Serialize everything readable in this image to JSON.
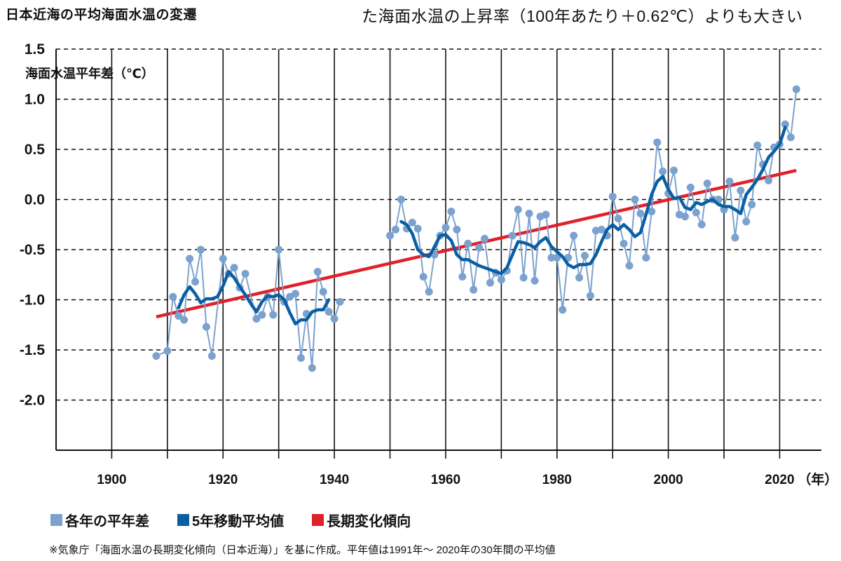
{
  "header": {
    "title": "日本近海の平均海面水温の変遷",
    "note": "た海面水温の上昇率（100年あたり＋0.62℃）よりも大きい"
  },
  "legend": [
    {
      "label": "各年の平年差",
      "color": "#7ba2cf"
    },
    {
      "label": "5年移動平均値",
      "color": "#0a5fa3"
    },
    {
      "label": "長期変化傾向",
      "color": "#e0202a"
    }
  ],
  "source": "※気象庁「海面水温の長期変化傾向（日本近海）」を基に作成。平年値は1991年～ 2020年の30年間の平均値",
  "chart_data": {
    "type": "line",
    "title": "日本近海の平均海面水温の変遷",
    "ylabel": "海面水温平年差（℃）",
    "xlabel": "（年）",
    "xlim": [
      1890,
      2027.5
    ],
    "ylim": [
      -2.5,
      1.5
    ],
    "grid": true,
    "legend_position": "bottom",
    "yticks": [
      1.5,
      1.0,
      0.5,
      0.0,
      -0.5,
      -1.0,
      -1.5,
      -2.0
    ],
    "ytick_labels": [
      "1.5",
      "1.0",
      "0.5",
      "0.0",
      "-0.5",
      "-1.0",
      "-1.5",
      "-2.0"
    ],
    "xticks": [
      1900,
      1920,
      1940,
      1960,
      1980,
      2000,
      2020
    ],
    "xtick_labels": [
      "1900",
      "1920",
      "1940",
      "1960",
      "1980",
      "2000",
      "2020"
    ],
    "series": [
      {
        "name": "各年の平年差",
        "segments": [
          {
            "x": [
              1908,
              1910,
              1911,
              1912,
              1913,
              1914,
              1915,
              1916,
              1917,
              1918,
              1920,
              1921,
              1922,
              1923,
              1924,
              1926,
              1927,
              1928,
              1929,
              1930,
              1931,
              1932,
              1933,
              1934,
              1935,
              1936,
              1937,
              1938,
              1939,
              1940,
              1941
            ],
            "y": [
              -1.56,
              -1.51,
              -0.97,
              -1.16,
              -1.2,
              -0.59,
              -0.82,
              -0.5,
              -1.27,
              -1.56,
              -0.59,
              -0.74,
              -0.68,
              -0.88,
              -0.74,
              -1.19,
              -1.15,
              -0.97,
              -1.15,
              -0.5,
              -1.02,
              -0.97,
              -0.94,
              -1.58,
              -1.14,
              -1.68,
              -0.72,
              -0.92,
              -1.12,
              -1.19,
              -1.02
            ]
          },
          {
            "x": [
              1950,
              1951,
              1952,
              1953,
              1954,
              1955,
              1956,
              1957,
              1958,
              1959,
              1960,
              1961,
              1962,
              1963,
              1964,
              1965,
              1966,
              1967,
              1968,
              1969,
              1970,
              1971,
              1972,
              1973,
              1974,
              1975,
              1976,
              1977,
              1978,
              1979,
              1980,
              1981,
              1982,
              1983,
              1984,
              1985,
              1986,
              1987,
              1988,
              1989,
              1990,
              1991,
              1992,
              1993,
              1994,
              1995,
              1996,
              1997,
              1998,
              1999,
              2000,
              2001,
              2002,
              2003,
              2004,
              2005,
              2006,
              2007,
              2008,
              2009,
              2010,
              2011,
              2012,
              2013,
              2014,
              2015,
              2016,
              2017,
              2018,
              2019,
              2020,
              2021,
              2022,
              2023
            ],
            "y": [
              -0.36,
              -0.3,
              0.0,
              -0.29,
              -0.23,
              -0.29,
              -0.77,
              -0.92,
              -0.55,
              -0.36,
              -0.28,
              -0.12,
              -0.3,
              -0.77,
              -0.44,
              -0.9,
              -0.48,
              -0.39,
              -0.83,
              -0.73,
              -0.8,
              -0.71,
              -0.36,
              -0.1,
              -0.78,
              -0.14,
              -0.81,
              -0.17,
              -0.15,
              -0.58,
              -0.58,
              -1.1,
              -0.58,
              -0.36,
              -0.78,
              -0.56,
              -0.96,
              -0.31,
              -0.3,
              -0.36,
              0.03,
              -0.19,
              -0.44,
              -0.66,
              0.0,
              -0.14,
              -0.58,
              -0.12,
              0.57,
              0.28,
              0.06,
              0.29,
              -0.15,
              -0.17,
              0.12,
              -0.13,
              -0.25,
              0.16,
              0.0,
              0.0,
              -0.1,
              0.18,
              -0.38,
              0.09,
              -0.22,
              -0.05,
              0.54,
              0.35,
              0.19,
              0.52,
              0.55,
              0.75,
              0.62,
              1.1
            ]
          }
        ]
      },
      {
        "name": "5年移動平均値",
        "segments": [
          {
            "x": [
              1912,
              1913,
              1914,
              1915,
              1916,
              1917,
              1918,
              1919,
              1920,
              1921,
              1922,
              1923,
              1924,
              1925,
              1926,
              1927,
              1928,
              1929,
              1930,
              1931,
              1932,
              1933,
              1934,
              1935,
              1936,
              1937,
              1938,
              1939
            ],
            "y": [
              -1.08,
              -0.95,
              -0.87,
              -0.94,
              -1.03,
              -0.99,
              -0.99,
              -0.97,
              -0.86,
              -0.72,
              -0.78,
              -0.87,
              -0.95,
              -1.04,
              -1.12,
              -1.02,
              -0.96,
              -0.97,
              -0.95,
              -1.0,
              -1.13,
              -1.24,
              -1.2,
              -1.2,
              -1.12,
              -1.1,
              -1.1,
              -1.0
            ]
          },
          {
            "x": [
              1952,
              1953,
              1954,
              1955,
              1956,
              1957,
              1958,
              1959,
              1960,
              1961,
              1962,
              1963,
              1964,
              1965,
              1966,
              1967,
              1968,
              1969,
              1970,
              1971,
              1972,
              1973,
              1974,
              1975,
              1976,
              1977,
              1978,
              1979,
              1980,
              1981,
              1982,
              1983,
              1984,
              1985,
              1986,
              1987,
              1988,
              1989,
              1990,
              1991,
              1992,
              1993,
              1994,
              1995,
              1996,
              1997,
              1998,
              1999,
              2000,
              2001,
              2002,
              2003,
              2004,
              2005,
              2006,
              2007,
              2008,
              2009,
              2010,
              2011,
              2012,
              2013,
              2014,
              2015,
              2016,
              2017,
              2018,
              2019,
              2020,
              2021
            ],
            "y": [
              -0.22,
              -0.25,
              -0.34,
              -0.5,
              -0.55,
              -0.57,
              -0.47,
              -0.36,
              -0.35,
              -0.41,
              -0.55,
              -0.6,
              -0.6,
              -0.63,
              -0.66,
              -0.68,
              -0.7,
              -0.72,
              -0.74,
              -0.68,
              -0.55,
              -0.42,
              -0.43,
              -0.45,
              -0.48,
              -0.42,
              -0.38,
              -0.47,
              -0.52,
              -0.57,
              -0.65,
              -0.68,
              -0.65,
              -0.65,
              -0.64,
              -0.55,
              -0.42,
              -0.3,
              -0.25,
              -0.3,
              -0.25,
              -0.3,
              -0.37,
              -0.33,
              -0.15,
              0.05,
              0.18,
              0.23,
              0.1,
              0.01,
              0.02,
              -0.08,
              -0.1,
              -0.03,
              -0.05,
              -0.02,
              0.0,
              -0.05,
              -0.07,
              -0.07,
              -0.1,
              -0.14,
              0.05,
              0.12,
              0.2,
              0.3,
              0.42,
              0.48,
              0.55,
              0.72
            ]
          }
        ]
      },
      {
        "name": "長期変化傾向",
        "x": [
          1908,
          2023
        ],
        "y": [
          -1.17,
          0.29
        ]
      }
    ]
  }
}
